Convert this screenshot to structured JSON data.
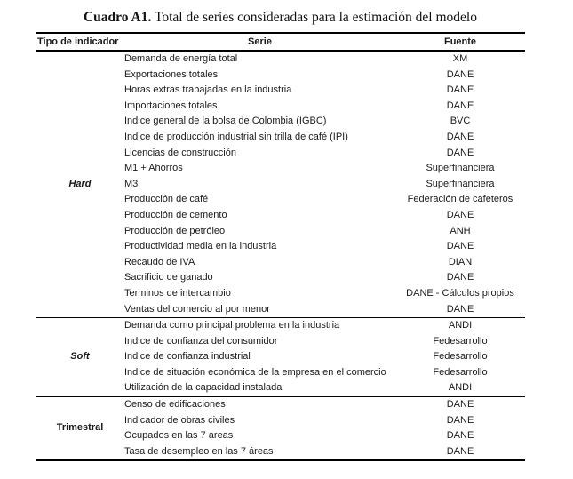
{
  "title": {
    "bold": "Cuadro A1.",
    "rest": " Total de series consideradas para la estimación del modelo"
  },
  "table": {
    "headers": {
      "tipo": "Tipo de indicador",
      "serie": "Serie",
      "fuente": "Fuente"
    },
    "groups": [
      {
        "tipo": "Hard",
        "style": "bold-italic",
        "rows": [
          {
            "serie": "Demanda de energía total",
            "fuente": "XM"
          },
          {
            "serie": "Exportaciones totales",
            "fuente": "DANE"
          },
          {
            "serie": "Horas extras trabajadas en la industria",
            "fuente": "DANE"
          },
          {
            "serie": "Importaciones totales",
            "fuente": "DANE"
          },
          {
            "serie": "Indice general de la bolsa de Colombia (IGBC)",
            "fuente": "BVC"
          },
          {
            "serie": "Indice de producción industrial sin trilla de café (IPI)",
            "fuente": "DANE"
          },
          {
            "serie": "Licencias de construcción",
            "fuente": "DANE"
          },
          {
            "serie": "M1 + Ahorros",
            "fuente": "Superfinanciera"
          },
          {
            "serie": "M3",
            "fuente": "Superfinanciera"
          },
          {
            "serie": "Producción de café",
            "fuente": "Federación de cafeteros"
          },
          {
            "serie": "Producción de cemento",
            "fuente": "DANE"
          },
          {
            "serie": "Producción de petróleo",
            "fuente": "ANH"
          },
          {
            "serie": "Productividad media en la industria",
            "fuente": "DANE"
          },
          {
            "serie": "Recaudo de IVA",
            "fuente": "DIAN"
          },
          {
            "serie": "Sacrificio de ganado",
            "fuente": "DANE"
          },
          {
            "serie": "Terminos de intercambio",
            "fuente": "DANE - Cálculos propios"
          },
          {
            "serie": "Ventas del comercio al por menor",
            "fuente": "DANE"
          }
        ]
      },
      {
        "tipo": "Soft",
        "style": "bold-italic",
        "rows": [
          {
            "serie": "Demanda como principal problema en la industria",
            "fuente": "ANDI"
          },
          {
            "serie": "Indice de confianza del consumidor",
            "fuente": "Fedesarrollo"
          },
          {
            "serie": "Indice de confianza industrial",
            "fuente": "Fedesarrollo"
          },
          {
            "serie": "Indice de situación económica de la empresa en el comercio",
            "fuente": "Fedesarrollo"
          },
          {
            "serie": "Utilización de la capacidad instalada",
            "fuente": "ANDI"
          }
        ]
      },
      {
        "tipo": "Trimestral",
        "style": "bold",
        "rows": [
          {
            "serie": "Censo de edificaciones",
            "fuente": "DANE"
          },
          {
            "serie": "Indicador de obras civiles",
            "fuente": "DANE"
          },
          {
            "serie": "Ocupados en las 7 areas",
            "fuente": "DANE"
          },
          {
            "serie": "Tasa de desempleo en las 7 áreas",
            "fuente": "DANE"
          }
        ]
      }
    ]
  },
  "colors": {
    "text": "#1a1a1a",
    "rule": "#000000",
    "background": "#ffffff"
  }
}
